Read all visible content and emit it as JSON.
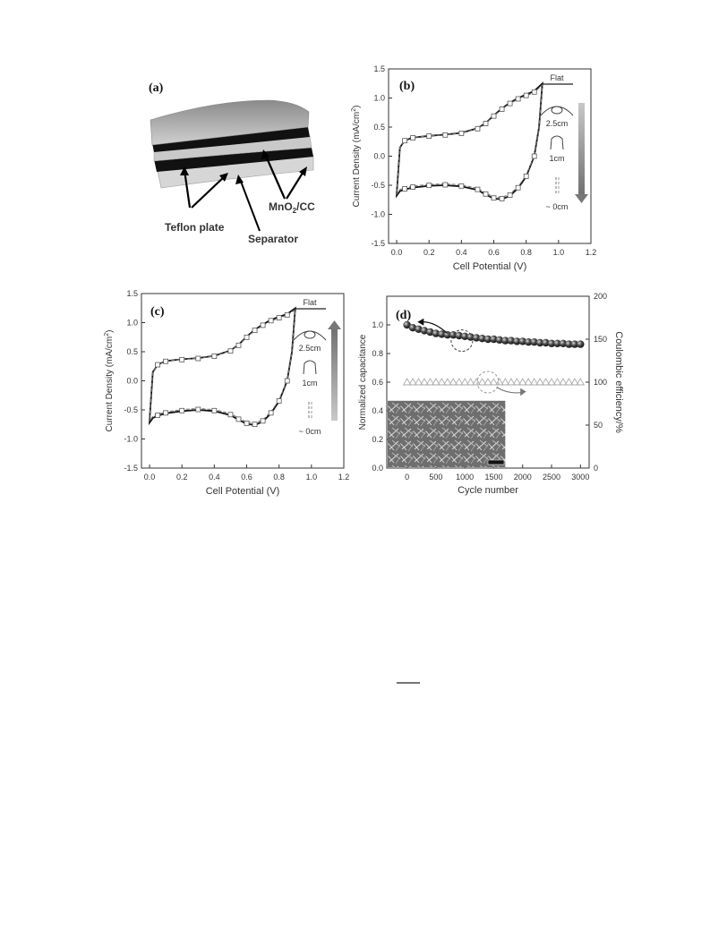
{
  "panel_a": {
    "label": "(a)",
    "labels": {
      "teflon": "Teflon plate",
      "separator": "Separator",
      "electrode_prefix": "MnO",
      "electrode_sub": "2",
      "electrode_suffix": "/CC"
    }
  },
  "bend_legend": {
    "flat": "Flat",
    "r25": "2.5cm",
    "r1": "1cm",
    "r0": "~ 0cm"
  },
  "chart_data": [
    {
      "id": "b",
      "label": "(b)",
      "type": "line",
      "xlabel": "Cell Potential (V)",
      "ylabel": "Current Density (mA/cm",
      "ylabel_sup": "2",
      "ylabel_end": ")",
      "xlim": [
        -0.05,
        1.2
      ],
      "ylim": [
        -1.5,
        1.5
      ],
      "xticks": [
        "0.0",
        "0.2",
        "0.4",
        "0.6",
        "0.8",
        "1.0",
        "1.2"
      ],
      "yticks": [
        "-1.5",
        "-1.0",
        "-0.5",
        "0.0",
        "0.5",
        "1.0",
        "1.5"
      ],
      "upper": {
        "x": [
          0.0,
          0.02,
          0.05,
          0.1,
          0.2,
          0.3,
          0.4,
          0.5,
          0.55,
          0.6,
          0.65,
          0.7,
          0.75,
          0.8,
          0.85,
          0.9
        ],
        "y": [
          -0.65,
          0.15,
          0.27,
          0.32,
          0.35,
          0.37,
          0.4,
          0.48,
          0.57,
          0.7,
          0.82,
          0.92,
          1.0,
          1.06,
          1.12,
          1.25
        ]
      },
      "lower": {
        "x": [
          0.9,
          0.88,
          0.85,
          0.8,
          0.75,
          0.7,
          0.65,
          0.6,
          0.55,
          0.5,
          0.4,
          0.3,
          0.2,
          0.1,
          0.05,
          0.02,
          0.0
        ],
        "y": [
          1.25,
          0.5,
          0.0,
          -0.35,
          -0.55,
          -0.68,
          -0.74,
          -0.73,
          -0.66,
          -0.58,
          -0.52,
          -0.5,
          -0.51,
          -0.54,
          -0.57,
          -0.6,
          -0.68
        ]
      }
    },
    {
      "id": "c",
      "label": "(c)",
      "type": "line",
      "xlabel": "Cell Potential (V)",
      "ylabel": "Current Density (mA/cm",
      "ylabel_sup": "2",
      "ylabel_end": ")",
      "xlim": [
        -0.05,
        1.2
      ],
      "ylim": [
        -1.5,
        1.5
      ],
      "xticks": [
        "0.0",
        "0.2",
        "0.4",
        "0.6",
        "0.8",
        "1.0",
        "1.2"
      ],
      "yticks": [
        "-1.5",
        "-1.0",
        "-0.5",
        "0.0",
        "0.5",
        "1.0",
        "1.5"
      ],
      "upper": {
        "x": [
          0.0,
          0.02,
          0.05,
          0.1,
          0.2,
          0.3,
          0.4,
          0.5,
          0.55,
          0.6,
          0.65,
          0.7,
          0.75,
          0.8,
          0.85,
          0.9
        ],
        "y": [
          -0.68,
          0.15,
          0.28,
          0.34,
          0.37,
          0.39,
          0.43,
          0.52,
          0.62,
          0.76,
          0.88,
          0.97,
          1.05,
          1.1,
          1.15,
          1.25
        ]
      },
      "lower": {
        "x": [
          0.9,
          0.88,
          0.85,
          0.8,
          0.75,
          0.7,
          0.65,
          0.6,
          0.55,
          0.5,
          0.4,
          0.3,
          0.2,
          0.1,
          0.05,
          0.02,
          0.0
        ],
        "y": [
          1.25,
          0.5,
          0.0,
          -0.35,
          -0.56,
          -0.7,
          -0.76,
          -0.74,
          -0.67,
          -0.59,
          -0.52,
          -0.5,
          -0.52,
          -0.56,
          -0.6,
          -0.64,
          -0.72
        ]
      }
    },
    {
      "id": "d",
      "label": "(d)",
      "type": "scatter",
      "xlabel": "Cycle number",
      "ylabel": "Normalized capacitance",
      "y2label": "Coulombic efficiency/%",
      "xlim": [
        -350,
        3150
      ],
      "ylim": [
        0.0,
        1.2
      ],
      "y2lim": [
        0,
        200
      ],
      "xticks": [
        "0",
        "500",
        "1000",
        "1500",
        "2000",
        "2500",
        "3000"
      ],
      "yticks": [
        "0.0",
        "0.2",
        "0.4",
        "0.6",
        "0.8",
        "1.0"
      ],
      "y2ticks": [
        "0",
        "50",
        "100",
        "150",
        "200"
      ],
      "capacitance": {
        "x": [
          0,
          100,
          200,
          300,
          400,
          500,
          600,
          700,
          800,
          900,
          1000,
          1100,
          1200,
          1300,
          1400,
          1500,
          1600,
          1700,
          1800,
          1900,
          2000,
          2100,
          2200,
          2300,
          2400,
          2500,
          2600,
          2700,
          2800,
          2900,
          3000
        ],
        "y": [
          1.0,
          0.98,
          0.97,
          0.96,
          0.95,
          0.94,
          0.935,
          0.93,
          0.93,
          0.925,
          0.92,
          0.915,
          0.91,
          0.905,
          0.9,
          0.9,
          0.895,
          0.89,
          0.89,
          0.885,
          0.885,
          0.88,
          0.88,
          0.875,
          0.875,
          0.87,
          0.87,
          0.87,
          0.865,
          0.865,
          0.865
        ]
      },
      "coulombic": {
        "x": [
          0,
          100,
          200,
          300,
          400,
          500,
          600,
          700,
          800,
          900,
          1000,
          1100,
          1200,
          1300,
          1400,
          1500,
          1600,
          1700,
          1800,
          1900,
          2000,
          2100,
          2200,
          2300,
          2400,
          2500,
          2600,
          2700,
          2800,
          2900,
          3000
        ],
        "y": [
          100,
          100,
          100,
          100,
          100,
          100,
          100,
          100,
          100,
          100,
          100,
          100,
          100,
          100,
          100,
          100,
          100,
          100,
          100,
          100,
          100,
          100,
          100,
          100,
          100,
          100,
          100,
          100,
          100,
          100,
          100
        ]
      }
    }
  ]
}
